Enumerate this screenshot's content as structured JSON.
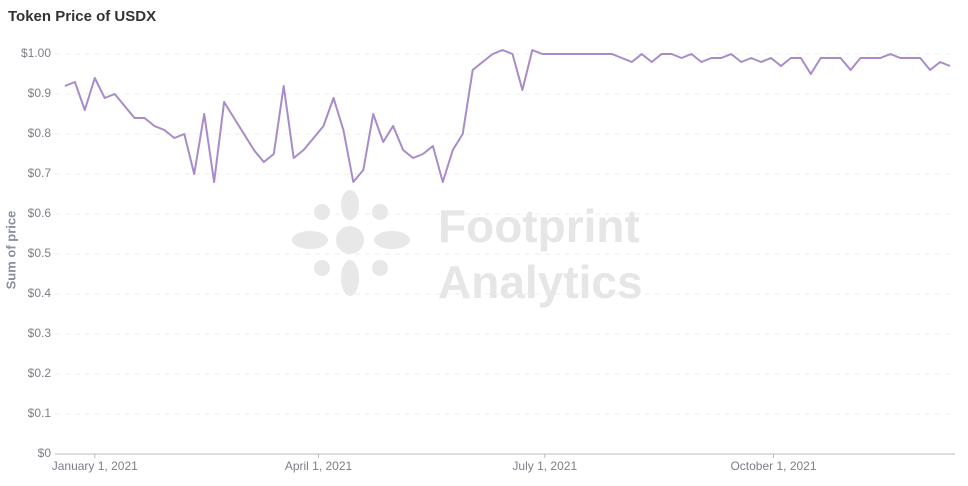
{
  "chart_data": {
    "type": "line",
    "title": "Token Price of USDX",
    "y_label": "Sum of price",
    "watermark": [
      "Footprint",
      "Analytics"
    ],
    "x": [
      "2020-12-20",
      "2020-12-24",
      "2020-12-28",
      "2021-01-01",
      "2021-01-05",
      "2021-01-09",
      "2021-01-13",
      "2021-01-17",
      "2021-01-21",
      "2021-01-25",
      "2021-01-29",
      "2021-02-02",
      "2021-02-06",
      "2021-02-10",
      "2021-02-14",
      "2021-02-18",
      "2021-02-22",
      "2021-02-26",
      "2021-03-02",
      "2021-03-06",
      "2021-03-10",
      "2021-03-14",
      "2021-03-18",
      "2021-03-22",
      "2021-03-26",
      "2021-03-30",
      "2021-04-03",
      "2021-04-07",
      "2021-04-11",
      "2021-04-15",
      "2021-04-19",
      "2021-04-23",
      "2021-04-27",
      "2021-05-01",
      "2021-05-05",
      "2021-05-09",
      "2021-05-13",
      "2021-05-17",
      "2021-05-21",
      "2021-05-25",
      "2021-05-29",
      "2021-06-02",
      "2021-06-06",
      "2021-06-10",
      "2021-06-14",
      "2021-06-18",
      "2021-06-22",
      "2021-06-26",
      "2021-06-30",
      "2021-07-04",
      "2021-07-08",
      "2021-07-12",
      "2021-07-16",
      "2021-07-20",
      "2021-07-24",
      "2021-07-28",
      "2021-08-01",
      "2021-08-05",
      "2021-08-09",
      "2021-08-13",
      "2021-08-17",
      "2021-08-21",
      "2021-08-25",
      "2021-08-29",
      "2021-09-02",
      "2021-09-06",
      "2021-09-10",
      "2021-09-14",
      "2021-09-18",
      "2021-09-22",
      "2021-09-26",
      "2021-09-30",
      "2021-10-04",
      "2021-10-08",
      "2021-10-12",
      "2021-10-16",
      "2021-10-20",
      "2021-10-24",
      "2021-10-28",
      "2021-11-01",
      "2021-11-05",
      "2021-11-09",
      "2021-11-13",
      "2021-11-17",
      "2021-11-21",
      "2021-11-25",
      "2021-11-29",
      "2021-12-03",
      "2021-12-07",
      "2021-12-11"
    ],
    "series": [
      {
        "name": "Sum of price",
        "color": "#a98bc9",
        "values": [
          0.92,
          0.93,
          0.86,
          0.94,
          0.89,
          0.9,
          0.87,
          0.84,
          0.84,
          0.82,
          0.81,
          0.79,
          0.8,
          0.7,
          0.85,
          0.68,
          0.88,
          0.84,
          0.8,
          0.76,
          0.73,
          0.75,
          0.92,
          0.74,
          0.76,
          0.79,
          0.82,
          0.89,
          0.81,
          0.68,
          0.71,
          0.85,
          0.78,
          0.82,
          0.76,
          0.74,
          0.75,
          0.77,
          0.68,
          0.76,
          0.8,
          0.96,
          0.98,
          1.0,
          1.01,
          1.0,
          0.91,
          1.01,
          1.0,
          1.0,
          1.0,
          1.0,
          1.0,
          1.0,
          1.0,
          1.0,
          0.99,
          0.98,
          1.0,
          0.98,
          1.0,
          1.0,
          0.99,
          1.0,
          0.98,
          0.99,
          0.99,
          1.0,
          0.98,
          0.99,
          0.98,
          0.99,
          0.97,
          0.99,
          0.99,
          0.95,
          0.99,
          0.99,
          0.99,
          0.96,
          0.99,
          0.99,
          0.99,
          1.0,
          0.99,
          0.99,
          0.99,
          0.96,
          0.98,
          0.97
        ]
      }
    ],
    "xlim": [
      "2020-12-16",
      "2021-12-13"
    ],
    "xticks": [
      {
        "value": "2021-01-01",
        "label": "January 1, 2021"
      },
      {
        "value": "2021-04-01",
        "label": "April 1, 2021"
      },
      {
        "value": "2021-07-01",
        "label": "July 1, 2021"
      },
      {
        "value": "2021-10-01",
        "label": "October 1, 2021"
      }
    ],
    "ylim": [
      0,
      1.04
    ],
    "yticks": [
      {
        "value": 0,
        "label": "$0"
      },
      {
        "value": 0.1,
        "label": "$0.1"
      },
      {
        "value": 0.2,
        "label": "$0.2"
      },
      {
        "value": 0.3,
        "label": "$0.3"
      },
      {
        "value": 0.4,
        "label": "$0.4"
      },
      {
        "value": 0.5,
        "label": "$0.5"
      },
      {
        "value": 0.6,
        "label": "$0.6"
      },
      {
        "value": 0.7,
        "label": "$0.7"
      },
      {
        "value": 0.8,
        "label": "$0.8"
      },
      {
        "value": 0.9,
        "label": "$0.9"
      },
      {
        "value": 1.0,
        "label": "$1.00"
      }
    ],
    "grid": true
  }
}
